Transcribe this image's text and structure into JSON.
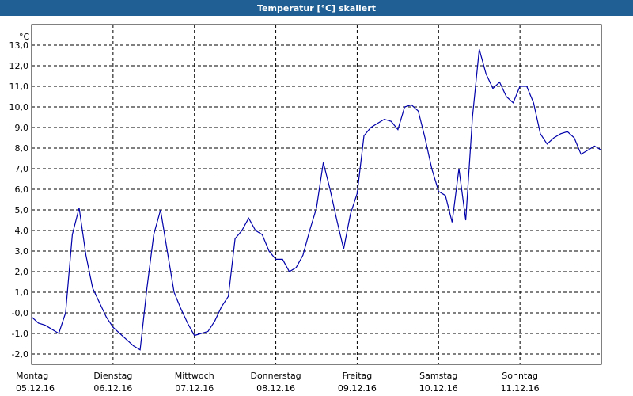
{
  "window": {
    "title": "Temperatur [°C] skaliert"
  },
  "chart_data": {
    "type": "line",
    "y_unit": "°C",
    "days": [
      {
        "day": "Montag",
        "date": "05.12.16"
      },
      {
        "day": "Dienstag",
        "date": "06.12.16"
      },
      {
        "day": "Mittwoch",
        "date": "07.12.16"
      },
      {
        "day": "Donnerstag",
        "date": "08.12.16"
      },
      {
        "day": "Freitag",
        "date": "09.12.16"
      },
      {
        "day": "Samstag",
        "date": "10.12.16"
      },
      {
        "day": "Sonntag",
        "date": "11.12.16"
      }
    ],
    "color": "#0000aa",
    "grid": true,
    "ylim": [
      -2.5,
      14.0
    ],
    "yticks": [
      {
        "value": -2,
        "label": "-2,0"
      },
      {
        "value": -1,
        "label": "-1,0"
      },
      {
        "value": 0,
        "label": "-0,0"
      },
      {
        "value": 1,
        "label": "1,0"
      },
      {
        "value": 2,
        "label": "2,0"
      },
      {
        "value": 3,
        "label": "3,0"
      },
      {
        "value": 4,
        "label": "4,0"
      },
      {
        "value": 5,
        "label": "5,0"
      },
      {
        "value": 6,
        "label": "6,0"
      },
      {
        "value": 7,
        "label": "7,0"
      },
      {
        "value": 8,
        "label": "8,0"
      },
      {
        "value": 9,
        "label": "9,0"
      },
      {
        "value": 10,
        "label": "10,0"
      },
      {
        "value": 11,
        "label": "11,0"
      },
      {
        "value": 12,
        "label": "12,0"
      },
      {
        "value": 13,
        "label": "13,0"
      }
    ],
    "values": [
      -0.2,
      -0.5,
      -0.6,
      -0.8,
      -1.0,
      0.0,
      3.8,
      5.1,
      2.8,
      1.2,
      0.5,
      -0.2,
      -0.7,
      -1.0,
      -1.3,
      -1.6,
      -1.8,
      1.2,
      3.8,
      5.0,
      3.0,
      1.0,
      0.2,
      -0.5,
      -1.1,
      -1.0,
      -0.9,
      -0.4,
      0.3,
      0.8,
      3.6,
      4.0,
      4.6,
      4.0,
      3.8,
      3.0,
      2.6,
      2.6,
      2.0,
      2.2,
      2.8,
      4.0,
      5.1,
      7.3,
      6.0,
      4.5,
      3.1,
      4.8,
      5.8,
      8.6,
      9.0,
      9.2,
      9.4,
      9.3,
      8.9,
      10.0,
      10.1,
      9.8,
      8.5,
      7.0,
      5.9,
      5.7,
      4.4,
      7.0,
      4.5,
      9.5,
      12.8,
      11.6,
      10.9,
      11.2,
      10.5,
      10.2,
      11.0,
      11.0,
      10.2,
      8.7,
      8.2,
      8.5,
      8.7,
      8.8,
      8.5,
      7.7,
      7.9,
      8.1,
      7.9
    ]
  }
}
